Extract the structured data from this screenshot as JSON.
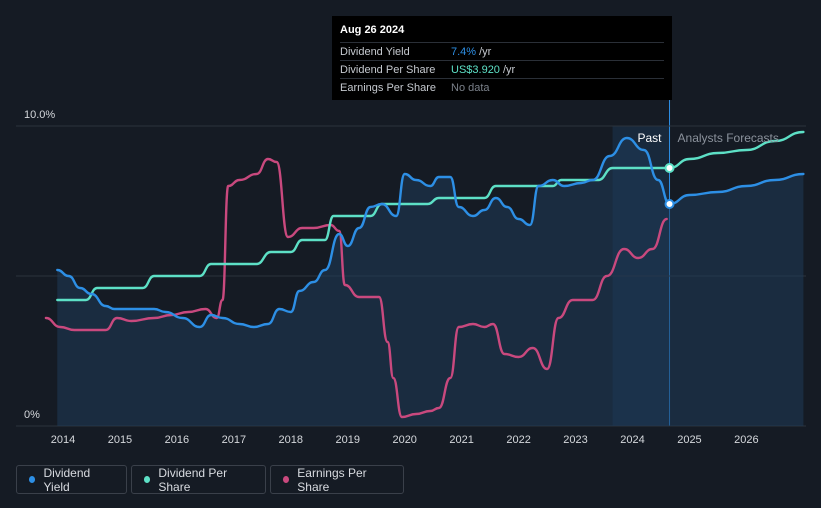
{
  "chart_data": {
    "type": "line",
    "x_ticks": [
      "2014",
      "2015",
      "2016",
      "2017",
      "2018",
      "2019",
      "2020",
      "2021",
      "2022",
      "2023",
      "2024",
      "2025",
      "2026"
    ],
    "y_ticks": [
      "10.0%",
      "0%"
    ],
    "ylim": [
      0,
      10
    ],
    "xlim": [
      2013.7,
      2027.0
    ],
    "past_label": "Past",
    "forecast_label": "Analysts Forecasts",
    "past_start": 2023.65,
    "divider": 2024.65,
    "grid": true,
    "series": [
      {
        "name": "Dividend Yield",
        "color": "#2d8fe5",
        "values": [
          [
            2013.9,
            5.2
          ],
          [
            2014.1,
            5.0
          ],
          [
            2014.3,
            4.6
          ],
          [
            2014.5,
            4.4
          ],
          [
            2014.75,
            4.0
          ],
          [
            2014.9,
            3.9
          ],
          [
            2015.2,
            3.9
          ],
          [
            2015.6,
            3.9
          ],
          [
            2015.8,
            3.8
          ],
          [
            2016.1,
            3.6
          ],
          [
            2016.4,
            3.3
          ],
          [
            2016.6,
            3.7
          ],
          [
            2016.8,
            3.6
          ],
          [
            2017.1,
            3.4
          ],
          [
            2017.35,
            3.3
          ],
          [
            2017.6,
            3.4
          ],
          [
            2017.8,
            3.9
          ],
          [
            2018.0,
            3.8
          ],
          [
            2018.15,
            4.5
          ],
          [
            2018.4,
            4.8
          ],
          [
            2018.6,
            5.2
          ],
          [
            2018.85,
            6.4
          ],
          [
            2019.0,
            6.0
          ],
          [
            2019.2,
            6.6
          ],
          [
            2019.4,
            7.3
          ],
          [
            2019.6,
            7.4
          ],
          [
            2019.85,
            7.0
          ],
          [
            2020.0,
            8.4
          ],
          [
            2020.2,
            8.2
          ],
          [
            2020.45,
            8.0
          ],
          [
            2020.6,
            8.3
          ],
          [
            2020.8,
            8.3
          ],
          [
            2020.95,
            7.3
          ],
          [
            2021.2,
            7.0
          ],
          [
            2021.4,
            7.2
          ],
          [
            2021.6,
            7.6
          ],
          [
            2021.8,
            7.3
          ],
          [
            2022.0,
            6.9
          ],
          [
            2022.2,
            6.7
          ],
          [
            2022.35,
            8.0
          ],
          [
            2022.6,
            8.2
          ],
          [
            2022.8,
            8.0
          ],
          [
            2023.1,
            8.1
          ],
          [
            2023.3,
            8.2
          ],
          [
            2023.6,
            9.0
          ],
          [
            2023.9,
            9.6
          ],
          [
            2024.2,
            9.2
          ],
          [
            2024.45,
            8.2
          ],
          [
            2024.65,
            7.4
          ],
          [
            2025.0,
            7.7
          ],
          [
            2025.5,
            7.8
          ],
          [
            2026.0,
            8.0
          ],
          [
            2026.5,
            8.2
          ],
          [
            2027.0,
            8.4
          ]
        ]
      },
      {
        "name": "Dividend Per Share",
        "color": "#5de0c6",
        "values": [
          [
            2013.9,
            4.2
          ],
          [
            2014.4,
            4.2
          ],
          [
            2014.6,
            4.6
          ],
          [
            2015.4,
            4.6
          ],
          [
            2015.6,
            5.0
          ],
          [
            2016.4,
            5.0
          ],
          [
            2016.6,
            5.4
          ],
          [
            2017.4,
            5.4
          ],
          [
            2017.65,
            5.8
          ],
          [
            2018.0,
            5.8
          ],
          [
            2018.2,
            6.2
          ],
          [
            2018.6,
            6.2
          ],
          [
            2018.75,
            7.0
          ],
          [
            2019.4,
            7.0
          ],
          [
            2019.6,
            7.4
          ],
          [
            2020.4,
            7.4
          ],
          [
            2020.6,
            7.6
          ],
          [
            2021.4,
            7.6
          ],
          [
            2021.6,
            8.0
          ],
          [
            2022.6,
            8.0
          ],
          [
            2022.75,
            8.2
          ],
          [
            2023.4,
            8.2
          ],
          [
            2023.65,
            8.6
          ],
          [
            2024.65,
            8.6
          ],
          [
            2025.0,
            8.9
          ],
          [
            2025.5,
            9.1
          ],
          [
            2026.0,
            9.2
          ],
          [
            2026.5,
            9.5
          ],
          [
            2027.0,
            9.8
          ]
        ]
      },
      {
        "name": "Earnings Per Share",
        "color": "#c9497e",
        "values": [
          [
            2013.7,
            3.6
          ],
          [
            2013.95,
            3.3
          ],
          [
            2014.2,
            3.2
          ],
          [
            2014.5,
            3.2
          ],
          [
            2014.75,
            3.2
          ],
          [
            2014.95,
            3.6
          ],
          [
            2015.2,
            3.5
          ],
          [
            2015.6,
            3.6
          ],
          [
            2015.9,
            3.7
          ],
          [
            2016.2,
            3.8
          ],
          [
            2016.5,
            3.9
          ],
          [
            2016.7,
            3.6
          ],
          [
            2016.8,
            4.2
          ],
          [
            2016.9,
            8.0
          ],
          [
            2017.1,
            8.2
          ],
          [
            2017.4,
            8.4
          ],
          [
            2017.6,
            8.9
          ],
          [
            2017.75,
            8.8
          ],
          [
            2017.95,
            6.3
          ],
          [
            2018.2,
            6.6
          ],
          [
            2018.4,
            6.6
          ],
          [
            2018.7,
            6.7
          ],
          [
            2018.85,
            6.5
          ],
          [
            2018.95,
            4.7
          ],
          [
            2019.2,
            4.3
          ],
          [
            2019.55,
            4.3
          ],
          [
            2019.7,
            2.8
          ],
          [
            2019.8,
            1.6
          ],
          [
            2019.95,
            0.3
          ],
          [
            2020.2,
            0.4
          ],
          [
            2020.45,
            0.5
          ],
          [
            2020.6,
            0.6
          ],
          [
            2020.8,
            1.6
          ],
          [
            2020.95,
            3.3
          ],
          [
            2021.2,
            3.4
          ],
          [
            2021.4,
            3.3
          ],
          [
            2021.55,
            3.4
          ],
          [
            2021.75,
            2.4
          ],
          [
            2022.0,
            2.3
          ],
          [
            2022.25,
            2.6
          ],
          [
            2022.5,
            1.9
          ],
          [
            2022.7,
            3.6
          ],
          [
            2022.95,
            4.2
          ],
          [
            2023.3,
            4.2
          ],
          [
            2023.55,
            5.0
          ],
          [
            2023.85,
            5.9
          ],
          [
            2024.1,
            5.6
          ],
          [
            2024.35,
            5.9
          ],
          [
            2024.6,
            6.9
          ]
        ]
      }
    ],
    "markers": [
      {
        "series": "Dividend Yield",
        "x": 2024.65,
        "y": 7.4
      },
      {
        "series": "Dividend Per Share",
        "x": 2024.65,
        "y": 8.6
      }
    ]
  },
  "tooltip": {
    "date": "Aug 26 2024",
    "rows": [
      {
        "label": "Dividend Yield",
        "value": "7.4%",
        "unit": "/yr",
        "color": "#2d8fe5"
      },
      {
        "label": "Dividend Per Share",
        "value": "US$3.920",
        "unit": "/yr",
        "color": "#5de0c6"
      },
      {
        "label": "Earnings Per Share",
        "value": "No data",
        "unit": "",
        "color": "#7b818a"
      }
    ]
  },
  "legend": [
    {
      "label": "Dividend Yield",
      "color": "#2d8fe5"
    },
    {
      "label": "Dividend Per Share",
      "color": "#5de0c6"
    },
    {
      "label": "Earnings Per Share",
      "color": "#c9497e"
    }
  ]
}
